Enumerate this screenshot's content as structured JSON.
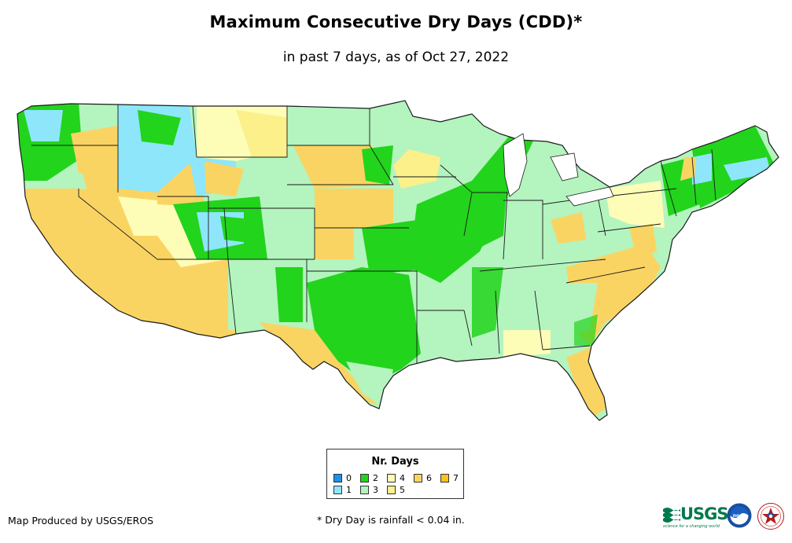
{
  "header": {
    "title": "Maximum Consecutive Dry Days (CDD)*",
    "subtitle": "in past 7 days, as of Oct 27, 2022"
  },
  "legend": {
    "title": "Nr. Days",
    "items": [
      {
        "label": "0",
        "color": "#1e90e8"
      },
      {
        "label": "1",
        "color": "#8ee6fb"
      },
      {
        "label": "2",
        "color": "#22d41c"
      },
      {
        "label": "3",
        "color": "#b4f4bf"
      },
      {
        "label": "4",
        "color": "#fdfdb8"
      },
      {
        "label": "5",
        "color": "#fbf08a"
      },
      {
        "label": "6",
        "color": "#fad462"
      },
      {
        "label": "7",
        "color": "#fcc21a"
      }
    ]
  },
  "footer": {
    "credit": "Map Produced by USGS/EROS",
    "note": "* Dry Day is rainfall < 0.04 in."
  },
  "logos": {
    "usgs_text": "USGS",
    "usgs_tagline": "science for a changing world",
    "noaa_text": "noaa"
  },
  "map": {
    "region": "Contiguous United States",
    "border_color": "#1a1a1a"
  }
}
